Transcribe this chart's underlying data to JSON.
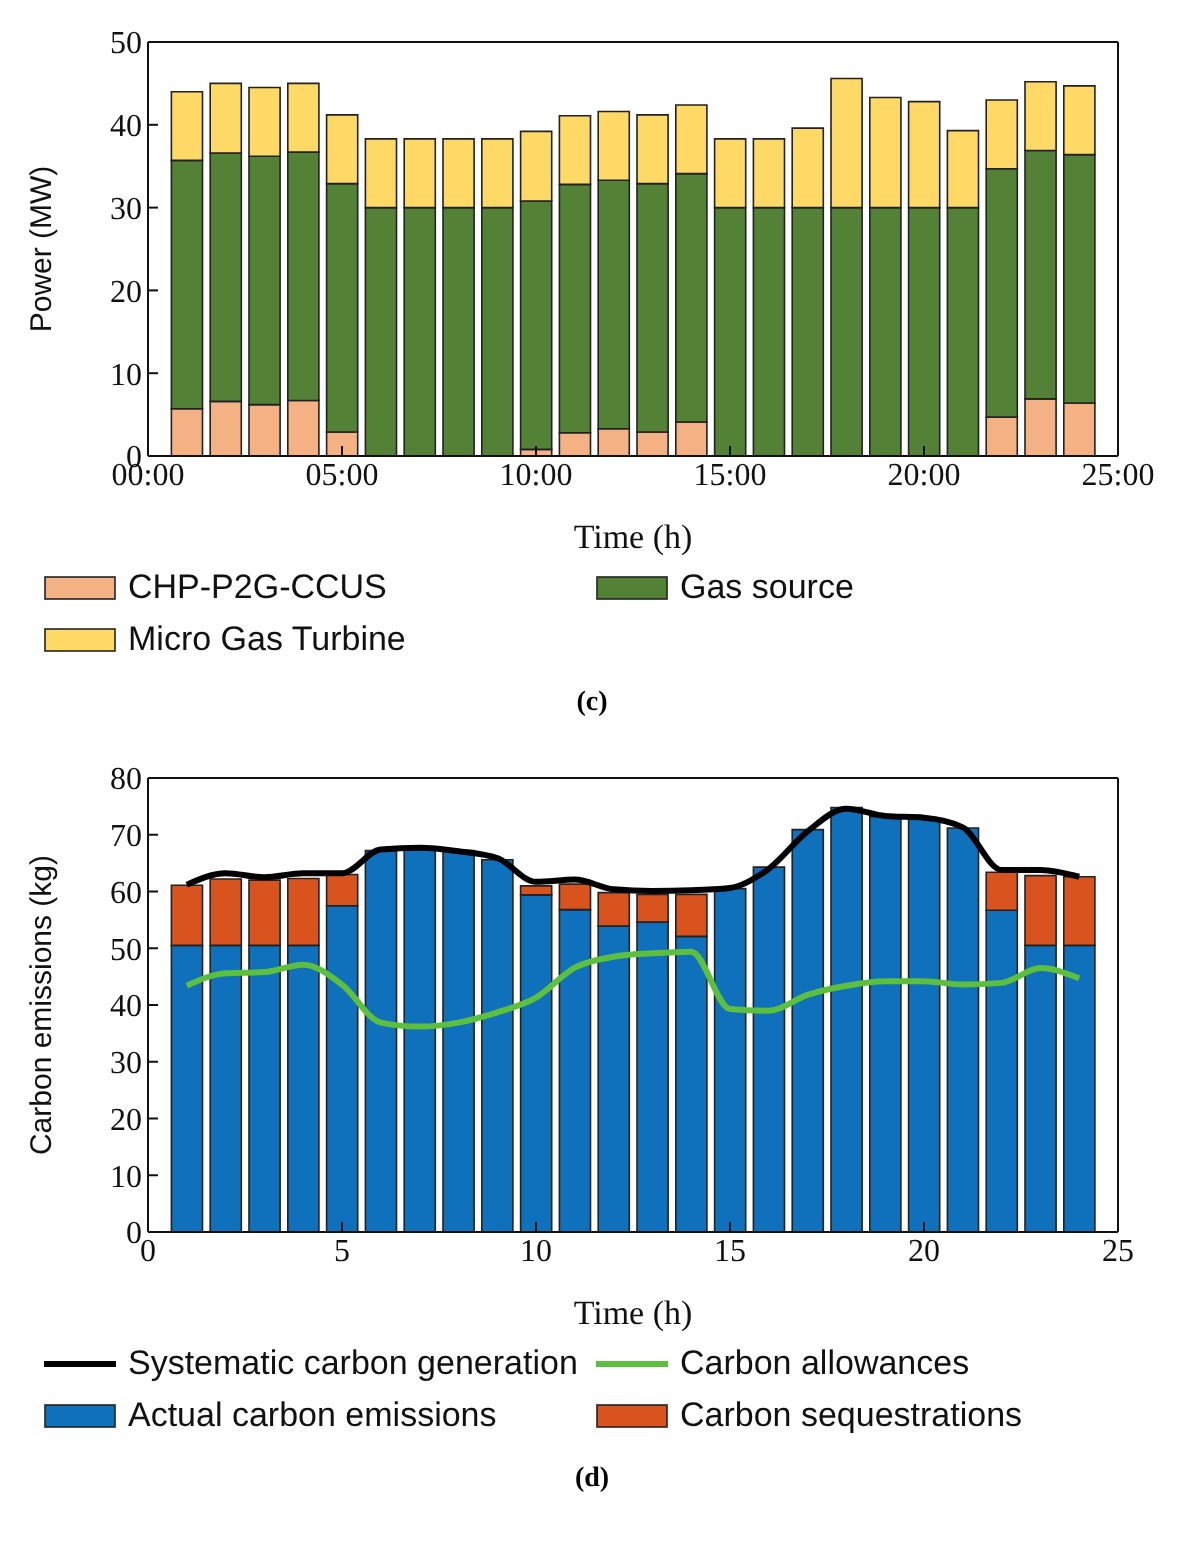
{
  "chart_data": [
    {
      "type": "bar",
      "stacked": true,
      "xlabel": "Time (h)",
      "ylabel": "Power (MW)",
      "x": [
        1,
        2,
        3,
        4,
        5,
        6,
        7,
        8,
        9,
        10,
        11,
        12,
        13,
        14,
        15,
        16,
        17,
        18,
        19,
        20,
        21,
        22,
        23,
        24
      ],
      "xlim": [
        0,
        25
      ],
      "xticks": [
        {
          "value": 0,
          "label": "00:00"
        },
        {
          "value": 5,
          "label": "05:00"
        },
        {
          "value": 10,
          "label": "10:00"
        },
        {
          "value": 15,
          "label": "15:00"
        },
        {
          "value": 20,
          "label": "20:00"
        },
        {
          "value": 25,
          "label": "25:00"
        }
      ],
      "ylim": [
        0,
        50
      ],
      "yticks": [
        0,
        10,
        20,
        30,
        40,
        50
      ],
      "grid": false,
      "legend": "bottom",
      "annotations": [
        "(c)"
      ],
      "series": [
        {
          "name": "CHP-P2G-CCUS",
          "color": "#f4b183",
          "values": [
            5.7,
            6.6,
            6.2,
            6.7,
            2.9,
            0,
            0,
            0,
            0,
            0.8,
            2.8,
            3.3,
            2.9,
            4.1,
            0,
            0,
            0,
            0,
            0,
            0,
            0,
            4.7,
            6.9,
            6.4
          ]
        },
        {
          "name": "Gas source",
          "color": "#538135",
          "values": [
            30,
            30,
            30,
            30,
            30,
            30,
            30,
            30,
            30,
            30,
            30,
            30,
            30,
            30,
            30,
            30,
            30,
            30,
            30,
            30,
            30,
            30,
            30,
            30
          ]
        },
        {
          "name": "Micro Gas Turbine",
          "color": "#ffd966",
          "values": [
            8.3,
            8.4,
            8.3,
            8.3,
            8.3,
            8.3,
            8.3,
            8.3,
            8.3,
            8.4,
            8.3,
            8.3,
            8.3,
            8.3,
            8.3,
            8.3,
            9.6,
            15.6,
            13.3,
            12.8,
            9.3,
            8.3,
            8.3,
            8.3
          ]
        }
      ]
    },
    {
      "type": "bar",
      "stacked": true,
      "xlabel": "Time (h)",
      "ylabel": "Carbon emissions (kg)",
      "x": [
        1,
        2,
        3,
        4,
        5,
        6,
        7,
        8,
        9,
        10,
        11,
        12,
        13,
        14,
        15,
        16,
        17,
        18,
        19,
        20,
        21,
        22,
        23,
        24
      ],
      "xlim": [
        0,
        25
      ],
      "xticks": [
        0,
        5,
        10,
        15,
        20,
        25
      ],
      "ylim": [
        0,
        80
      ],
      "yticks": [
        0,
        10,
        20,
        30,
        40,
        50,
        60,
        70,
        80
      ],
      "grid": false,
      "legend": "bottom",
      "annotations": [
        "(d)"
      ],
      "series": [
        {
          "name": "Systematic carbon generation",
          "type": "line",
          "color": "#000000",
          "values": [
            61.2,
            63.2,
            62.5,
            63.2,
            63.2,
            67.4,
            67.7,
            67.1,
            65.9,
            61.7,
            62.1,
            60.4,
            60.1,
            60.2,
            60.6,
            64,
            70.6,
            74.6,
            73.3,
            73,
            71.3,
            63.8,
            63.8,
            62.6
          ]
        },
        {
          "name": "Carbon allowances",
          "type": "line",
          "color": "#5cbf3e",
          "values": [
            43.4,
            45.6,
            45.8,
            47.1,
            43.6,
            36.9,
            36.2,
            36.9,
            38.7,
            41.3,
            46.6,
            48.5,
            49.1,
            49.4,
            39.3,
            39,
            41.8,
            43.4,
            44.2,
            44.2,
            43.6,
            43.9,
            46.5,
            44.7
          ]
        },
        {
          "name": "Actual carbon emissions",
          "color": "#0f70bc",
          "values": [
            50.5,
            50.5,
            50.5,
            50.5,
            57.5,
            67.2,
            67.7,
            67.2,
            65.6,
            59.4,
            56.8,
            53.9,
            54.6,
            52.1,
            60.5,
            64.3,
            70.9,
            74.8,
            73.2,
            72.9,
            71.2,
            56.7,
            50.5,
            50.5
          ]
        },
        {
          "name": "Carbon sequestrations",
          "color": "#d9531e",
          "values": [
            10.6,
            11.7,
            11.5,
            11.8,
            5.5,
            0,
            0,
            0,
            0,
            1.6,
            4.5,
            5.9,
            4.9,
            7.4,
            0,
            0,
            0,
            0,
            0,
            0,
            0,
            6.7,
            12.3,
            12.1
          ]
        }
      ]
    }
  ]
}
